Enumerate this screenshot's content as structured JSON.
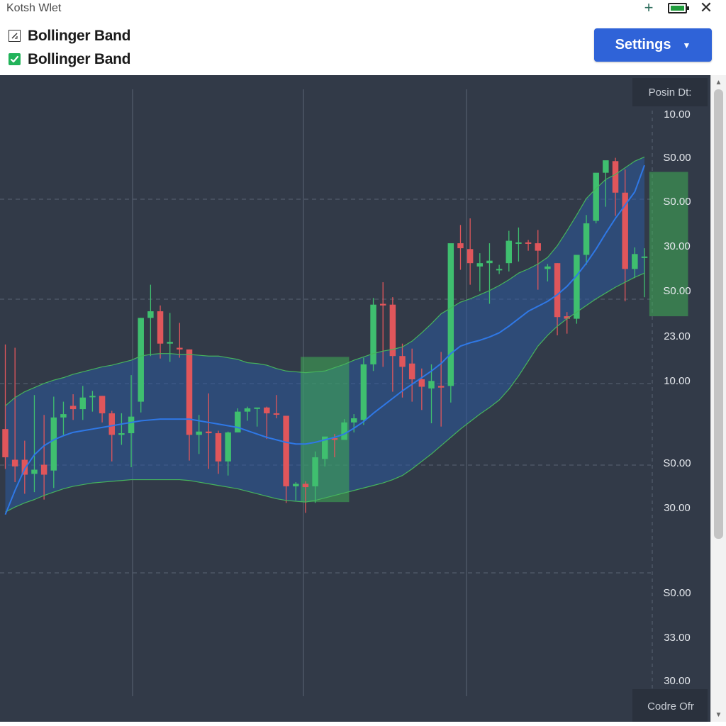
{
  "window": {
    "title": "Kotsh Wlet",
    "add_symbol": "+",
    "close_symbol": "✕",
    "icons": {
      "add": "plus-icon",
      "battery": "battery-icon",
      "close": "close-icon"
    }
  },
  "indicators": [
    {
      "label": "Bollinger Band",
      "checked": false,
      "icon": "checkbox-outline-icon"
    },
    {
      "label": "Bollinger Band",
      "checked": true,
      "icon": "checkbox-checked-icon"
    }
  ],
  "settings": {
    "label": "Settings",
    "caret": "▼"
  },
  "chart": {
    "corner_top_label": "Posin Dt:",
    "corner_bottom_label": "Codre Ofr",
    "price_axis_labels": [
      "10.00",
      "S0.00",
      "S0.00",
      "30.00",
      "S0.00",
      "23.00",
      "10.00",
      "S0.00",
      "30.00",
      "S0.00",
      "33.00",
      "30.00"
    ],
    "colors": {
      "background": "#323a48",
      "up": "#3fbf6f",
      "down": "#e0565b",
      "band_fill": "#2b5a9e",
      "band_edge": "#46b45c",
      "middle_line": "#2f78e6",
      "highlight": "#3fae55",
      "grid": "#5b6475"
    }
  },
  "chart_data": {
    "type": "candlestick",
    "ohlc": [
      [
        24.6,
        34.8,
        21.2,
        19.8
      ],
      [
        20.9,
        34.4,
        20.1,
        18.2
      ],
      [
        20.9,
        23.2,
        19.1,
        16.8
      ],
      [
        19.2,
        28.7,
        19.7,
        17.0
      ],
      [
        20.3,
        26.3,
        19.1,
        16.1
      ],
      [
        19.6,
        28.5,
        26.0,
        17.5
      ],
      [
        26.0,
        27.9,
        26.4,
        23.9
      ],
      [
        27.4,
        28.8,
        27.0,
        25.7
      ],
      [
        27.0,
        29.8,
        28.4,
        25.7
      ],
      [
        28.5,
        29.2,
        28.6,
        26.7
      ],
      [
        28.6,
        28.6,
        26.5,
        25.4
      ],
      [
        26.5,
        26.8,
        23.9,
        20.7
      ],
      [
        23.9,
        26.5,
        24.1,
        22.7
      ],
      [
        24.1,
        31.1,
        26.1,
        20.0
      ],
      [
        27.9,
        38.0,
        38.0,
        26.6
      ],
      [
        38.0,
        42.0,
        38.8,
        33.4
      ],
      [
        38.8,
        39.5,
        34.9,
        33.1
      ],
      [
        34.9,
        38.6,
        35.1,
        32.7
      ],
      [
        34.4,
        37.4,
        34.2,
        33.2
      ],
      [
        34.2,
        34.2,
        23.9,
        20.8
      ],
      [
        23.9,
        26.3,
        24.3,
        21.6
      ],
      [
        24.3,
        28.9,
        24.1,
        19.8
      ],
      [
        24.1,
        24.4,
        20.7,
        19.2
      ],
      [
        20.7,
        24.3,
        24.2,
        19.0
      ],
      [
        24.2,
        27.1,
        26.7,
        25.2
      ],
      [
        26.7,
        27.3,
        27.1,
        25.6
      ],
      [
        27.1,
        27.1,
        27.2,
        24.9
      ],
      [
        27.2,
        27.3,
        26.5,
        23.4
      ],
      [
        26.5,
        28.7,
        26.4,
        25.9
      ],
      [
        26.2,
        26.2,
        17.7,
        15.7
      ],
      [
        17.7,
        18.2,
        18.0,
        16.0
      ],
      [
        18.0,
        18.3,
        17.6,
        14.5
      ],
      [
        17.7,
        21.9,
        21.2,
        15.7
      ],
      [
        21.0,
        23.4,
        23.7,
        20.1
      ],
      [
        23.5,
        24.0,
        23.3,
        21.2
      ],
      [
        23.3,
        25.8,
        25.4,
        23.5
      ],
      [
        25.4,
        26.4,
        25.9,
        24.2
      ],
      [
        25.7,
        33.2,
        32.4,
        25.1
      ],
      [
        32.4,
        40.4,
        39.6,
        31.6
      ],
      [
        39.7,
        42.3,
        39.5,
        32.1
      ],
      [
        39.6,
        40.5,
        33.4,
        29.1
      ],
      [
        33.4,
        34.9,
        32.1,
        28.4
      ],
      [
        32.5,
        34.3,
        30.6,
        27.9
      ],
      [
        30.6,
        31.9,
        29.7,
        26.9
      ],
      [
        29.5,
        32.4,
        30.4,
        25.3
      ],
      [
        29.8,
        33.9,
        29.6,
        24.9
      ],
      [
        29.8,
        41.0,
        47.0,
        27.8
      ],
      [
        47.0,
        49.2,
        46.4,
        43.8
      ],
      [
        46.3,
        50.0,
        44.6,
        42.0
      ],
      [
        44.2,
        45.8,
        44.6,
        41.2
      ],
      [
        44.6,
        47.0,
        44.9,
        39.7
      ],
      [
        43.8,
        44.4,
        43.9,
        43.3
      ],
      [
        44.6,
        48.5,
        47.3,
        43.6
      ],
      [
        47.1,
        48.9,
        47.1,
        44.8
      ],
      [
        47.1,
        47.4,
        47.0,
        46.1
      ],
      [
        47.0,
        48.6,
        46.1,
        41.4
      ],
      [
        43.9,
        44.5,
        44.2,
        42.4
      ],
      [
        44.6,
        44.6,
        38.1,
        35.9
      ],
      [
        38.2,
        38.7,
        37.9,
        36.1
      ],
      [
        37.9,
        44.0,
        45.6,
        37.3
      ],
      [
        45.6,
        50.4,
        49.4,
        44.4
      ],
      [
        49.7,
        54.8,
        55.5,
        49.4
      ],
      [
        55.5,
        56.8,
        57.0,
        51.4
      ],
      [
        56.9,
        57.3,
        53.1,
        50.3
      ],
      [
        53.1,
        55.9,
        43.9,
        40.0
      ],
      [
        43.9,
        46.5,
        45.7,
        42.8
      ],
      [
        45.3,
        46.4,
        45.4,
        40.5
      ]
    ],
    "series": [
      {
        "values": [
          27.4,
          28.4,
          29.1,
          29.6,
          30.1,
          30.5,
          30.8,
          31.2,
          31.5,
          31.8,
          32.1,
          32.3,
          32.6,
          32.9,
          33.4,
          33.6,
          33.7,
          33.7,
          33.6,
          33.6,
          33.5,
          33.4,
          33.4,
          33.2,
          33.0,
          32.6,
          32.5,
          32.3,
          31.9,
          31.6,
          31.5,
          31.4,
          31.5,
          31.6,
          32.0,
          32.4,
          32.9,
          33.3,
          33.7,
          34.0,
          34.2,
          34.5,
          35.2,
          36.2,
          37.3,
          38.5,
          39.2,
          39.9,
          40.3,
          40.8,
          41.3,
          41.9,
          42.6,
          43.4,
          43.9,
          44.5,
          45.3,
          46.7,
          48.5,
          50.4,
          52.4,
          53.6,
          54.7,
          55.3,
          56.1,
          56.9,
          57.4
        ]
      },
      {
        "values": [
          14.6,
          15.2,
          15.7,
          16.1,
          16.6,
          17.0,
          17.4,
          17.7,
          17.9,
          18.1,
          18.2,
          18.3,
          18.4,
          18.5,
          18.5,
          18.5,
          18.5,
          18.5,
          18.5,
          18.4,
          18.2,
          18.0,
          17.8,
          17.6,
          17.4,
          17.1,
          16.8,
          16.5,
          16.2,
          16.0,
          15.9,
          15.8,
          16.0,
          16.3,
          16.6,
          16.9,
          17.2,
          17.5,
          17.8,
          18.1,
          18.5,
          19.0,
          19.8,
          20.7,
          21.6,
          22.6,
          23.6,
          24.6,
          25.5,
          26.4,
          27.2,
          28.1,
          29.4,
          31.0,
          32.8,
          34.6,
          35.9,
          37.0,
          37.9,
          38.7,
          39.5,
          40.3,
          41.0,
          41.7,
          42.3,
          42.9,
          43.4
        ]
      },
      {
        "values": [
          14.3,
          17.2,
          19.8,
          21.5,
          22.6,
          23.3,
          23.8,
          24.2,
          24.4,
          24.6,
          24.8,
          25.0,
          25.2,
          25.4,
          25.6,
          25.7,
          25.8,
          25.8,
          25.8,
          25.8,
          25.6,
          25.4,
          25.2,
          25.0,
          24.8,
          24.4,
          24.0,
          23.6,
          23.3,
          23.0,
          22.8,
          22.8,
          23.0,
          23.3,
          23.6,
          24.0,
          24.7,
          25.5,
          26.5,
          27.4,
          28.3,
          29.2,
          30.0,
          30.8,
          31.6,
          32.5,
          33.7,
          34.6,
          35.0,
          35.3,
          35.7,
          36.2,
          37.0,
          37.9,
          38.8,
          39.4,
          40.0,
          40.8,
          41.8,
          43.1,
          44.6,
          46.3,
          48.2,
          50.0,
          51.6,
          53.2,
          56.4
        ]
      }
    ],
    "highlight_ranges": [
      {
        "from_index": 31,
        "to_index": 35,
        "low": 15.8,
        "high": 33.3
      },
      {
        "from_index": 67,
        "to_index": 70,
        "low": 38.2,
        "high": 55.6
      }
    ],
    "y_tick_labels": [
      "10.00",
      "S0.00",
      "S0.00",
      "30.00",
      "S0.00",
      "23.00",
      "10.00",
      "S0.00",
      "30.00",
      "S0.00",
      "33.00",
      "30.00"
    ],
    "grid": true
  }
}
